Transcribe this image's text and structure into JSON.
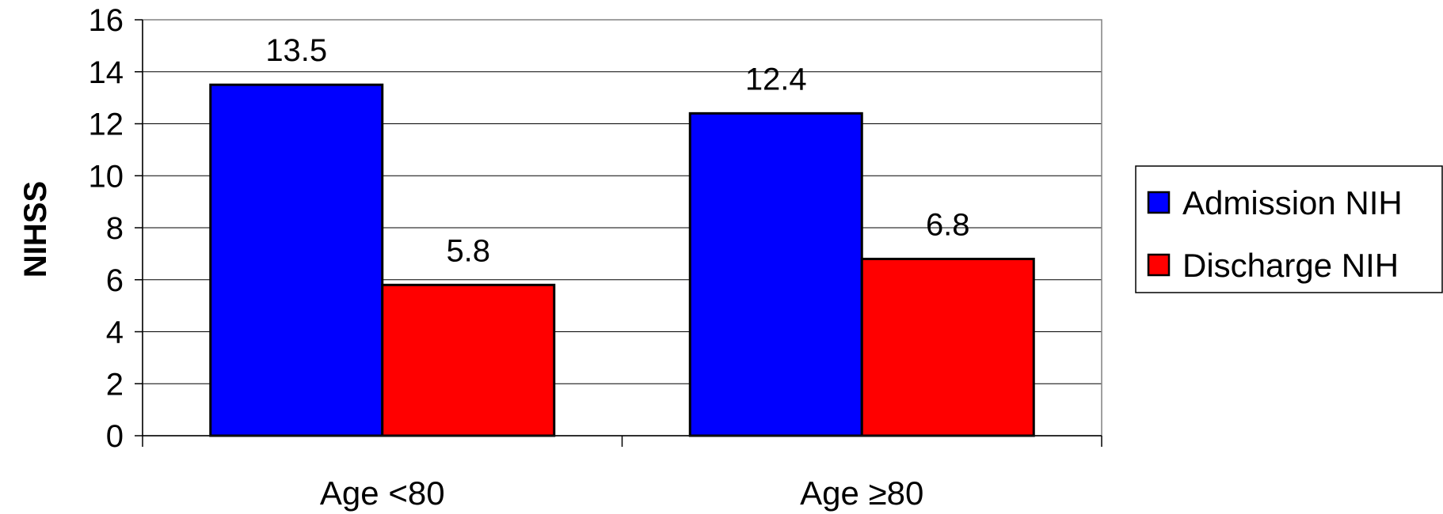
{
  "chart_data": {
    "type": "bar",
    "categories": [
      "Age <80",
      "Age ≥80"
    ],
    "series": [
      {
        "name": "Admission NIH",
        "color": "#0000ff",
        "values": [
          13.5,
          12.4
        ]
      },
      {
        "name": "Discharge NIH",
        "color": "#ff0000",
        "values": [
          5.8,
          6.8
        ]
      }
    ],
    "value_labels": [
      [
        "13.5",
        "12.4"
      ],
      [
        "5.8",
        "6.8"
      ]
    ],
    "title": "",
    "xlabel": "",
    "ylabel": "NIHSS",
    "ylim": [
      0,
      16
    ],
    "yticks": [
      "0",
      "2",
      "4",
      "6",
      "8",
      "10",
      "12",
      "14",
      "16"
    ],
    "grid": "horizontal",
    "legend_position": "right"
  }
}
